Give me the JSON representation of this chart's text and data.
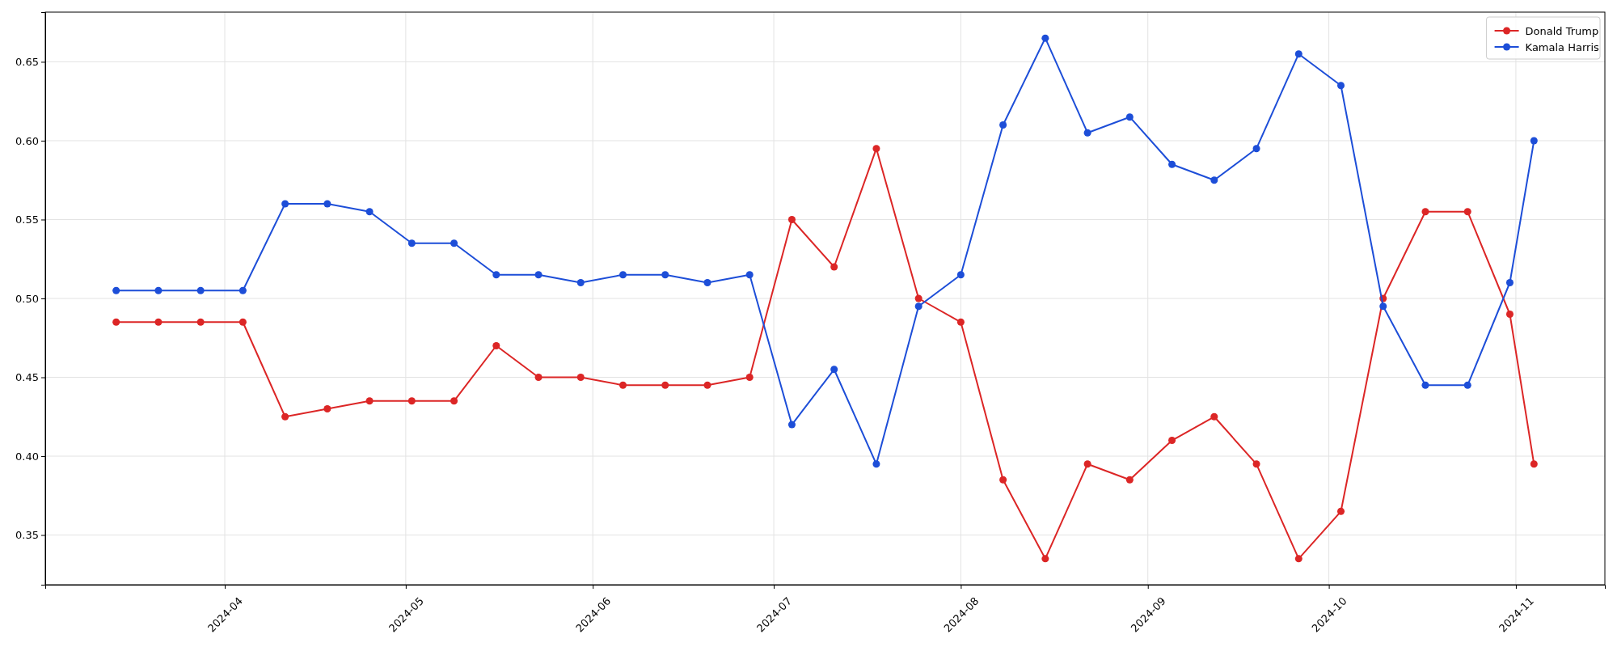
{
  "chart_data": {
    "type": "line",
    "x": [
      "2024-03-14",
      "2024-03-21",
      "2024-03-28",
      "2024-04-04",
      "2024-04-11",
      "2024-04-18",
      "2024-04-25",
      "2024-05-02",
      "2024-05-09",
      "2024-05-16",
      "2024-05-23",
      "2024-05-30",
      "2024-06-06",
      "2024-06-13",
      "2024-06-20",
      "2024-06-27",
      "2024-07-04",
      "2024-07-11",
      "2024-07-18",
      "2024-07-25",
      "2024-08-01",
      "2024-08-08",
      "2024-08-15",
      "2024-08-22",
      "2024-08-29",
      "2024-09-05",
      "2024-09-12",
      "2024-09-19",
      "2024-09-26",
      "2024-10-03",
      "2024-10-10",
      "2024-10-17",
      "2024-10-24",
      "2024-10-31",
      "2024-11-04"
    ],
    "series": [
      {
        "name": "Donald Trump",
        "color": "#dc2626",
        "values": [
          0.485,
          0.485,
          0.485,
          0.485,
          0.425,
          0.43,
          0.435,
          0.435,
          0.435,
          0.47,
          0.45,
          0.45,
          0.445,
          0.445,
          0.445,
          0.45,
          0.55,
          0.52,
          0.595,
          0.5,
          0.485,
          0.385,
          0.335,
          0.395,
          0.385,
          0.41,
          0.425,
          0.395,
          0.335,
          0.365,
          0.5,
          0.555,
          0.555,
          0.49,
          0.395
        ]
      },
      {
        "name": "Kamala Harris",
        "color": "#1d4ed8",
        "values": [
          0.505,
          0.505,
          0.505,
          0.505,
          0.56,
          0.56,
          0.555,
          0.535,
          0.535,
          0.515,
          0.515,
          0.51,
          0.515,
          0.515,
          0.51,
          0.515,
          0.42,
          0.455,
          0.395,
          0.495,
          0.515,
          0.61,
          0.665,
          0.605,
          0.615,
          0.585,
          0.575,
          0.595,
          0.655,
          0.635,
          0.495,
          0.445,
          0.445,
          0.51,
          0.6
        ]
      }
    ],
    "xlim": [
      "2024-03-02T06:00",
      "2024-11-15T18:00"
    ],
    "xticks": [
      "2024-04",
      "2024-05",
      "2024-06",
      "2024-07",
      "2024-08",
      "2024-09",
      "2024-10",
      "2024-11"
    ],
    "ylim": [
      0.3185,
      0.6815
    ],
    "yticks": [
      0.35,
      {
        "value": 0.4,
        "label": "0.40"
      },
      0.45,
      {
        "value": 0.5,
        "label": "0.50"
      },
      0.55,
      {
        "value": 0.6,
        "label": "0.60"
      },
      0.65
    ],
    "grid": true,
    "legend": "top right",
    "marker": "circle",
    "line_style": "solid"
  }
}
